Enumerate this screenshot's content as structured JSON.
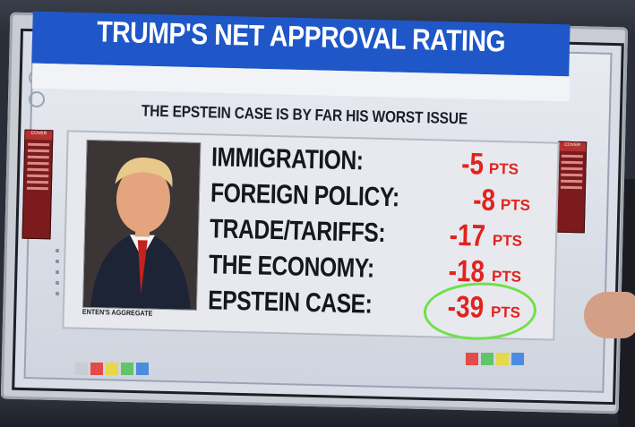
{
  "header": {
    "title": "TRUMP'S NET APPROVAL RATING",
    "subtitle": "THE EPSTEIN CASE IS BY FAR HIS WORST ISSUE"
  },
  "photo": {
    "caption": "ENTEN'S AGGREGATE"
  },
  "issues": [
    {
      "label": "IMMIGRATION:",
      "value": "-5",
      "unit": "PTS"
    },
    {
      "label": "FOREIGN POLICY:",
      "value": "-8",
      "unit": "PTS"
    },
    {
      "label": "TRADE/TARIFFS:",
      "value": "-17",
      "unit": "PTS"
    },
    {
      "label": "THE ECONOMY:",
      "value": "-18",
      "unit": "PTS"
    },
    {
      "label": "EPSTEIN CASE:",
      "value": "-39",
      "unit": "PTS"
    }
  ],
  "left_tab": {
    "header": "COVER"
  },
  "right_tab": {
    "header": "COVER"
  },
  "colors": {
    "title_bar": "#1f57c9",
    "negative": "#e0231f",
    "highlight_circle": "#6fe04a"
  },
  "icons": [
    "suit-portrait-icon",
    "gear-icon",
    "refresh-icon"
  ]
}
